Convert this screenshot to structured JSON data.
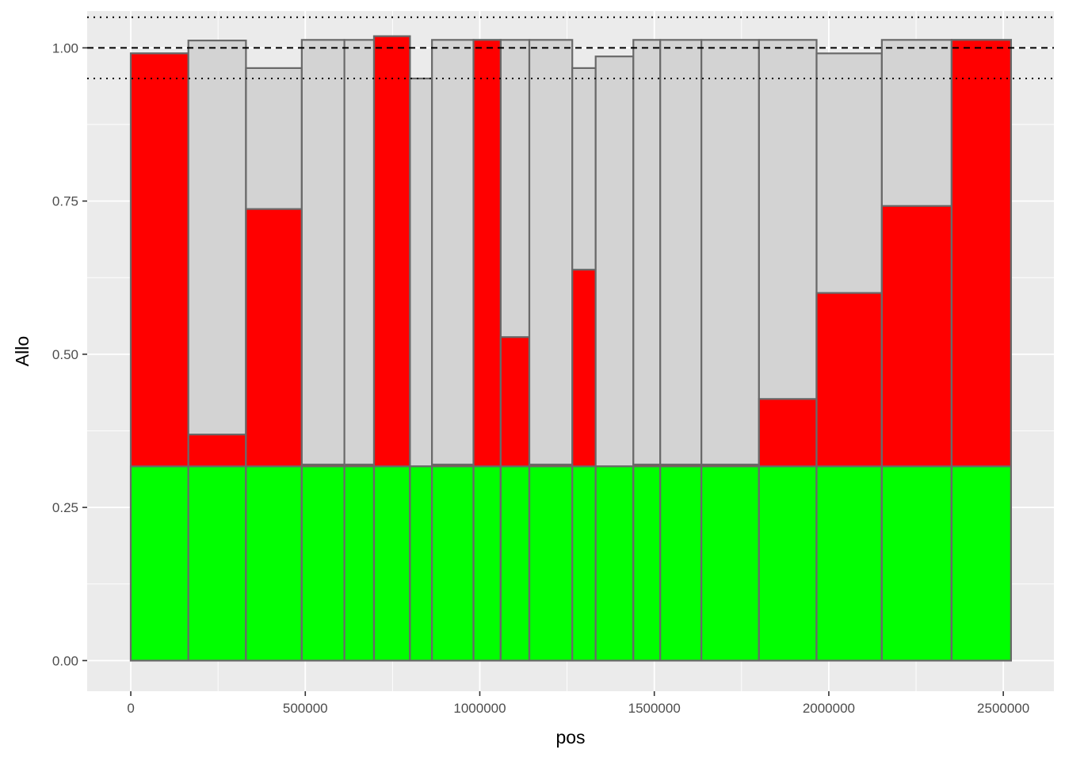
{
  "chart_data": {
    "type": "bar",
    "xlabel": "pos",
    "ylabel": "Allo",
    "xlim": [
      -125000,
      2645000
    ],
    "ylim": [
      -0.05,
      1.06
    ],
    "x_ticks": [
      0,
      500000,
      1000000,
      1500000,
      2000000,
      2500000
    ],
    "x_tick_labels": [
      "0",
      "500000",
      "1000000",
      "1500000",
      "2000000",
      "2500000"
    ],
    "y_ticks": [
      0,
      0.25,
      0.5,
      0.75,
      1.0
    ],
    "y_tick_labels": [
      "0.00",
      "0.25",
      "0.50",
      "0.75",
      "1.00"
    ],
    "grid": true,
    "legend": "none",
    "colors": {
      "panel_background": "#ebebeb",
      "grid": "#ffffff",
      "bar_outline": "#696969",
      "base_segment": "#00ff00",
      "middle_segment": "#ff0000",
      "top_segment": "#d3d3d3"
    },
    "reference_lines": [
      {
        "y": 1.0,
        "style": "dashed"
      },
      {
        "y": 0.95,
        "style": "dotted"
      },
      {
        "y": 1.05,
        "style": "dotted"
      }
    ],
    "bins": [
      {
        "x_start": 0,
        "x_end": 165000,
        "base": 0.317,
        "middle": 0.991,
        "top": 0.991
      },
      {
        "x_start": 165000,
        "x_end": 330000,
        "base": 0.317,
        "middle": 0.369,
        "top": 1.012
      },
      {
        "x_start": 330000,
        "x_end": 490000,
        "base": 0.317,
        "middle": 0.737,
        "top": 0.967
      },
      {
        "x_start": 490000,
        "x_end": 612000,
        "base": 0.317,
        "middle": 0.32,
        "top": 1.013
      },
      {
        "x_start": 612000,
        "x_end": 697000,
        "base": 0.317,
        "middle": 0.32,
        "top": 1.013
      },
      {
        "x_start": 697000,
        "x_end": 800000,
        "base": 0.317,
        "middle": 1.019,
        "top": 1.019
      },
      {
        "x_start": 800000,
        "x_end": 863000,
        "base": 0.317,
        "middle": 0.317,
        "top": 0.95
      },
      {
        "x_start": 863000,
        "x_end": 982000,
        "base": 0.317,
        "middle": 0.32,
        "top": 1.013
      },
      {
        "x_start": 982000,
        "x_end": 1060000,
        "base": 0.317,
        "middle": 1.013,
        "top": 1.013
      },
      {
        "x_start": 1060000,
        "x_end": 1142000,
        "base": 0.317,
        "middle": 0.528,
        "top": 1.013
      },
      {
        "x_start": 1142000,
        "x_end": 1265000,
        "base": 0.317,
        "middle": 0.32,
        "top": 1.013
      },
      {
        "x_start": 1265000,
        "x_end": 1332000,
        "base": 0.317,
        "middle": 0.638,
        "top": 0.967
      },
      {
        "x_start": 1332000,
        "x_end": 1440000,
        "base": 0.317,
        "middle": 0.317,
        "top": 0.986
      },
      {
        "x_start": 1440000,
        "x_end": 1517000,
        "base": 0.317,
        "middle": 0.32,
        "top": 1.013
      },
      {
        "x_start": 1517000,
        "x_end": 1635000,
        "base": 0.317,
        "middle": 0.32,
        "top": 1.013
      },
      {
        "x_start": 1635000,
        "x_end": 1800000,
        "base": 0.317,
        "middle": 0.32,
        "top": 1.013
      },
      {
        "x_start": 1800000,
        "x_end": 1965000,
        "base": 0.317,
        "middle": 0.427,
        "top": 1.013
      },
      {
        "x_start": 1965000,
        "x_end": 2152000,
        "base": 0.317,
        "middle": 0.6,
        "top": 0.991
      },
      {
        "x_start": 2152000,
        "x_end": 2352000,
        "base": 0.317,
        "middle": 0.742,
        "top": 1.013
      },
      {
        "x_start": 2352000,
        "x_end": 2522000,
        "base": 0.317,
        "middle": 1.013,
        "top": 1.013
      }
    ]
  }
}
